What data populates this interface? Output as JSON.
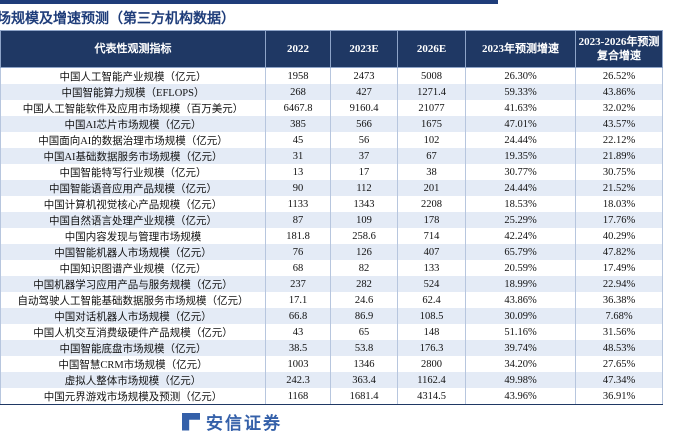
{
  "header": {
    "title": "场规模及增速预测（第三方机构数据）"
  },
  "table": {
    "columns": [
      "代表性观测指标",
      "2022",
      "2023E",
      "2026E",
      "2023年预测增速",
      "2023-2026年预测复合增速"
    ],
    "rows": [
      [
        "中国人工智能产业规模（亿元）",
        "1958",
        "2473",
        "5008",
        "26.30%",
        "26.52%"
      ],
      [
        "中国智能算力规模（EFLOPS）",
        "268",
        "427",
        "1271.4",
        "59.33%",
        "43.86%"
      ],
      [
        "中国人工智能软件及应用市场规模（百万美元）",
        "6467.8",
        "9160.4",
        "21077",
        "41.63%",
        "32.02%"
      ],
      [
        "中国AI芯片市场规模（亿元）",
        "385",
        "566",
        "1675",
        "47.01%",
        "43.57%"
      ],
      [
        "中国面向AI的数据治理市场规模（亿元）",
        "45",
        "56",
        "102",
        "24.44%",
        "22.12%"
      ],
      [
        "中国AI基础数据服务市场规模（亿元）",
        "31",
        "37",
        "67",
        "19.35%",
        "21.89%"
      ],
      [
        "中国智能特写行业规模（亿元）",
        "13",
        "17",
        "38",
        "30.77%",
        "30.75%"
      ],
      [
        "中国智能语音应用产品规模（亿元）",
        "90",
        "112",
        "201",
        "24.44%",
        "21.52%"
      ],
      [
        "中国计算机视觉核心产品规模（亿元）",
        "1133",
        "1343",
        "2208",
        "18.53%",
        "18.03%"
      ],
      [
        "中国自然语言处理产业规模（亿元）",
        "87",
        "109",
        "178",
        "25.29%",
        "17.76%"
      ],
      [
        "中国内容发现与管理市场规模",
        "181.8",
        "258.6",
        "714",
        "42.24%",
        "40.29%"
      ],
      [
        "中国智能机器人市场规模（亿元）",
        "76",
        "126",
        "407",
        "65.79%",
        "47.82%"
      ],
      [
        "中国知识图谱产业规模（亿元）",
        "68",
        "82",
        "133",
        "20.59%",
        "17.49%"
      ],
      [
        "中国机器学习应用产品与服务规模（亿元）",
        "237",
        "282",
        "524",
        "18.99%",
        "22.94%"
      ],
      [
        "自动驾驶人工智能基础数据服务市场规模（亿元）",
        "17.1",
        "24.6",
        "62.4",
        "43.86%",
        "36.38%"
      ],
      [
        "中国对话机器人市场规模（亿元）",
        "66.8",
        "86.9",
        "108.5",
        "30.09%",
        "7.68%"
      ],
      [
        "中国人机交互消费级硬件产品规模（亿元）",
        "43",
        "65",
        "148",
        "51.16%",
        "31.56%"
      ],
      [
        "中国智能底盘市场规模（亿元）",
        "38.5",
        "53.8",
        "176.3",
        "39.74%",
        "48.53%"
      ],
      [
        "中国智慧CRM市场规模（亿元）",
        "1003",
        "1346",
        "2800",
        "34.20%",
        "27.65%"
      ],
      [
        "虚拟人整体市场规模（亿元）",
        "242.3",
        "363.4",
        "1162.4",
        "49.98%",
        "47.34%"
      ],
      [
        "中国元界游戏市场规模及预测（亿元）",
        "1168",
        "1681.4",
        "4314.5",
        "43.96%",
        "36.91%"
      ]
    ]
  },
  "footer": {
    "watermark": "安信证券"
  }
}
